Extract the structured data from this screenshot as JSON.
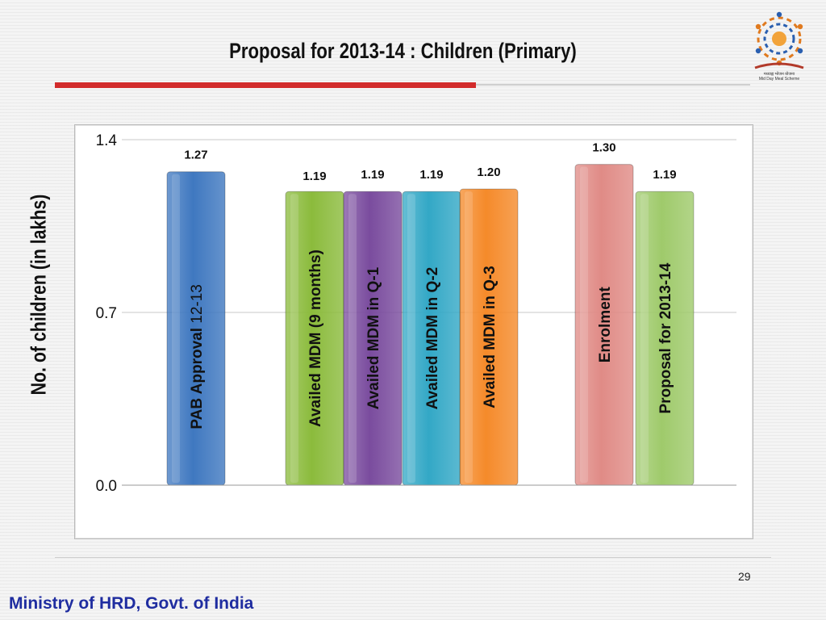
{
  "slide": {
    "title": "Proposal for 2013-14 : Children (Primary)",
    "page_number": "29",
    "footer": "Ministry of HRD, Govt. of India",
    "logo_caption_line1": "मध्याह्न भोजन योजना",
    "logo_caption_line2": "Mid Day Meal Scheme"
  },
  "chart_data": {
    "type": "bar",
    "title": "",
    "xlabel": "",
    "ylabel": "No. of children (in lakhs)",
    "ylim": [
      0,
      1.4
    ],
    "yticks": [
      "0.0",
      "0.7",
      "1.4"
    ],
    "grid": true,
    "categories": [
      "PAB Approval 12-13",
      "Availed MDM (9 months)",
      "Availed MDM in Q-1",
      "Availed MDM in Q-2",
      "Availed MDM in Q-3",
      "Enrolment",
      "Proposal for 2013-14"
    ],
    "category_parts": [
      [
        "PAB Approval",
        " 12-13"
      ],
      [
        "Availed MDM (9 months)",
        ""
      ],
      [
        "Availed MDM in Q-1",
        ""
      ],
      [
        "Availed MDM in Q-2",
        ""
      ],
      [
        "Availed MDM in Q-3",
        ""
      ],
      [
        "Enrolment",
        ""
      ],
      [
        "Proposal for 2013-14",
        ""
      ]
    ],
    "values": [
      1.27,
      1.19,
      1.19,
      1.19,
      1.2,
      1.3,
      1.19
    ],
    "data_labels": [
      "1.27",
      "1.19",
      "1.19",
      "1.19",
      "1.20",
      "1.30",
      "1.19"
    ],
    "colors": [
      "#3f78c0",
      "#8bbb3c",
      "#7a4c9e",
      "#33a8c6",
      "#f58a2a",
      "#e08b86",
      "#9fca6b"
    ]
  }
}
